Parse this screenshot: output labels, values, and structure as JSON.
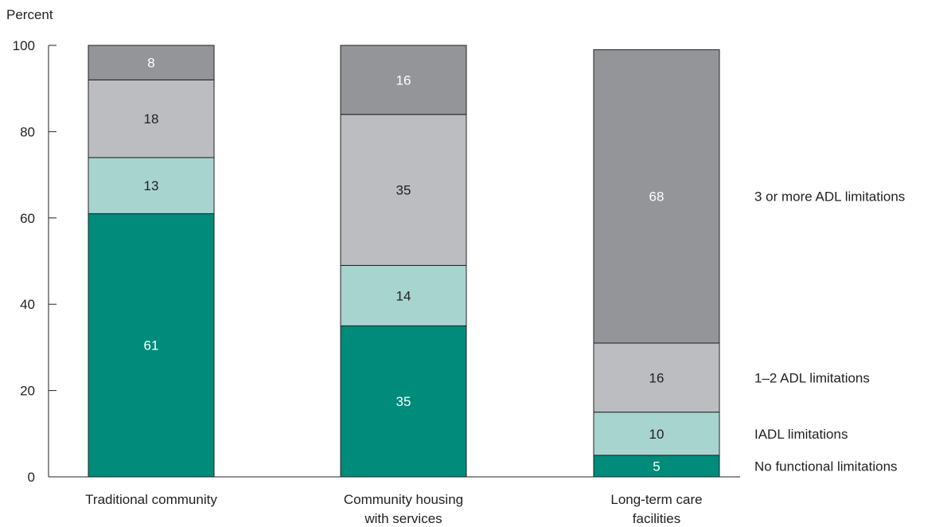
{
  "chart_data": {
    "type": "bar",
    "stacked": true,
    "ylabel": "Percent",
    "ylim": [
      0,
      100
    ],
    "yticks": [
      "0",
      "20",
      "40",
      "60",
      "80",
      "100"
    ],
    "grid": false,
    "legend_placement": "right",
    "categories": [
      "Traditional community",
      "Community housing with services",
      "Long-term care facilities"
    ],
    "category_label_lines": [
      [
        "Traditional community"
      ],
      [
        "Community housing",
        "with services"
      ],
      [
        "Long-term care",
        "facilities"
      ]
    ],
    "series": [
      {
        "name": "No functional limitations",
        "values": [
          61,
          35,
          5
        ],
        "color": "#008b7a",
        "label_color": "#ffffff"
      },
      {
        "name": "IADL limitations",
        "values": [
          13,
          14,
          10
        ],
        "color": "#a8d4d0",
        "label_color": "#222222"
      },
      {
        "name": "1–2 ADL limitations",
        "values": [
          18,
          35,
          16
        ],
        "color": "#bcbdc0",
        "label_color": "#222222"
      },
      {
        "name": "3 or more ADL limitations",
        "values": [
          8,
          16,
          68
        ],
        "color": "#939598",
        "label_color": "#ffffff"
      }
    ]
  }
}
